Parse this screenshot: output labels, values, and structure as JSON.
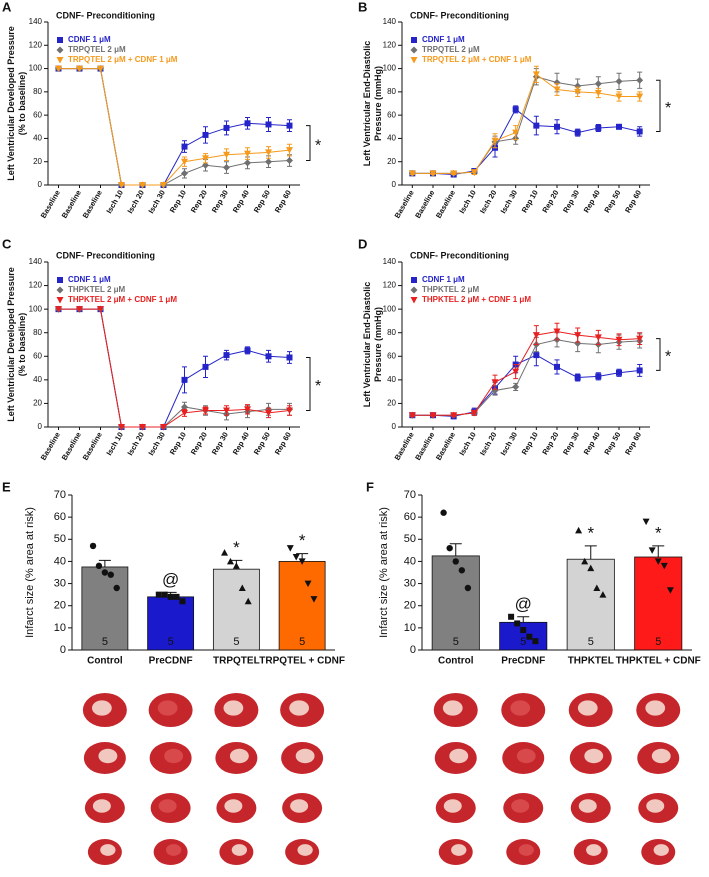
{
  "chart_data": [
    {
      "type": "line",
      "panel": "A",
      "title": "CDNF- Preconditioning",
      "ylabel": [
        "Left Ventricular Developed Pressure",
        "(% to baseline)"
      ],
      "categories": [
        "Baseline",
        "Baseline",
        "Baseline",
        "Isch 10",
        "Isch 20",
        "Isch 30",
        "Rep 10",
        "Rep 20",
        "Rep 30",
        "Rep 40",
        "Rep 50",
        "Rep 60"
      ],
      "ylim": [
        0,
        140
      ],
      "yticks": [
        0,
        20,
        40,
        60,
        80,
        100,
        120,
        140
      ],
      "annotation": "*",
      "series": [
        {
          "name": "CDNF 1 μM",
          "color": "#2424c8",
          "values": [
            100,
            100,
            100,
            0,
            0,
            0,
            33,
            43,
            49,
            53,
            52,
            51
          ],
          "errors": [
            0,
            0,
            0,
            0,
            0,
            0,
            5,
            7,
            6,
            5,
            6,
            5
          ]
        },
        {
          "name": "TRPQTEL 2 μM",
          "color": "#707070",
          "values": [
            100,
            100,
            100,
            0,
            0,
            0,
            10,
            17,
            15,
            19,
            20,
            21
          ],
          "errors": [
            0,
            0,
            0,
            0,
            0,
            0,
            4,
            5,
            5,
            5,
            5,
            5
          ]
        },
        {
          "name": "TRPQTEL 2 μM + CDNF 1 μM",
          "color": "#f59a1c",
          "values": [
            100,
            100,
            100,
            0,
            0,
            0,
            20,
            23,
            26,
            27,
            28,
            30
          ],
          "errors": [
            0,
            0,
            0,
            0,
            0,
            0,
            4,
            4,
            5,
            5,
            5,
            5
          ]
        }
      ]
    },
    {
      "type": "line",
      "panel": "B",
      "title": "CDNF- Preconditioning",
      "ylabel": [
        "Left Ventricular End-Diastolic",
        "Pressure (mmHg)"
      ],
      "categories": [
        "Baseline",
        "Baseline",
        "Baseline",
        "Isch 10",
        "Isch 20",
        "Isch 30",
        "Rep 10",
        "Rep 20",
        "Rep 30",
        "Rep 40",
        "Rep 50",
        "Rep 60"
      ],
      "ylim": [
        0,
        140
      ],
      "yticks": [
        0,
        20,
        40,
        60,
        80,
        100,
        120,
        140
      ],
      "annotation": "*",
      "series": [
        {
          "name": "CDNF 1 μM",
          "color": "#2424c8",
          "values": [
            10,
            10,
            9,
            12,
            32,
            65,
            51,
            50,
            45,
            49,
            50,
            46
          ],
          "errors": [
            0,
            0,
            1,
            2,
            8,
            3,
            8,
            6,
            3,
            3,
            2,
            4
          ]
        },
        {
          "name": "TRPQTEL 2 μM",
          "color": "#707070",
          "values": [
            10,
            10,
            10,
            11,
            37,
            40,
            93,
            88,
            85,
            87,
            89,
            90
          ],
          "errors": [
            1,
            1,
            1,
            2,
            5,
            5,
            7,
            8,
            6,
            6,
            7,
            7
          ]
        },
        {
          "name": "TRPQTEL 2 μM + CDNF 1 μM",
          "color": "#f59a1c",
          "values": [
            10,
            10,
            10,
            11,
            38,
            45,
            95,
            82,
            80,
            79,
            76,
            76
          ],
          "errors": [
            1,
            1,
            1,
            2,
            6,
            6,
            7,
            5,
            4,
            4,
            4,
            4
          ]
        }
      ]
    },
    {
      "type": "line",
      "panel": "C",
      "title": "CDNF- Preconditioning",
      "ylabel": [
        "Left Ventricular Developed Pressure",
        "(% to baseline)"
      ],
      "categories": [
        "Baseline",
        "Baseline",
        "Baseline",
        "Isch 10",
        "Isch 20",
        "Isch 30",
        "Rep 10",
        "Rep 20",
        "Rep 30",
        "Rep 40",
        "Rep 50",
        "Rep 60"
      ],
      "ylim": [
        0,
        140
      ],
      "yticks": [
        0,
        20,
        40,
        60,
        80,
        100,
        120,
        140
      ],
      "annotation": "*",
      "series": [
        {
          "name": "CDNF 1 μM",
          "color": "#2424c8",
          "values": [
            100,
            100,
            100,
            0,
            0,
            0,
            40,
            51,
            61,
            65,
            60,
            59
          ],
          "errors": [
            0,
            0,
            0,
            0,
            0,
            0,
            11,
            9,
            4,
            3,
            5,
            5
          ]
        },
        {
          "name": "THPKTEL 2 μM",
          "color": "#707070",
          "values": [
            100,
            100,
            100,
            0,
            0,
            0,
            17,
            14,
            11,
            13,
            15,
            15
          ],
          "errors": [
            0,
            0,
            0,
            0,
            0,
            0,
            4,
            4,
            5,
            5,
            5,
            5
          ]
        },
        {
          "name": "THPKTEL 2 μM + CDNF 1 μM",
          "color": "#e82020",
          "values": [
            100,
            100,
            100,
            0,
            0,
            0,
            12,
            14,
            14,
            15,
            12,
            14
          ],
          "errors": [
            0,
            0,
            0,
            0,
            0,
            0,
            3,
            3,
            4,
            4,
            4,
            4
          ]
        }
      ]
    },
    {
      "type": "line",
      "panel": "D",
      "title": "CDNF- Preconditioning",
      "ylabel": [
        "Left Ventricular End-Diastolic",
        "Pressure (mmHg)"
      ],
      "categories": [
        "Baseline",
        "Baseline",
        "Baseline",
        "Isch 10",
        "Isch 20",
        "Isch 30",
        "Rep 10",
        "Rep 20",
        "Rep 30",
        "Rep 40",
        "Rep 50",
        "Rep 60"
      ],
      "ylim": [
        0,
        140
      ],
      "yticks": [
        0,
        20,
        40,
        60,
        80,
        100,
        120,
        140
      ],
      "annotation": "*",
      "series": [
        {
          "name": "CDNF 1 μM",
          "color": "#2424c8",
          "values": [
            10,
            10,
            9,
            13,
            33,
            53,
            61,
            51,
            42,
            43,
            46,
            48
          ],
          "errors": [
            1,
            1,
            1,
            3,
            5,
            7,
            9,
            6,
            3,
            3,
            3,
            5
          ]
        },
        {
          "name": "THPKTEL 2 μM",
          "color": "#707070",
          "values": [
            10,
            10,
            10,
            12,
            31,
            34,
            70,
            74,
            71,
            70,
            72,
            73
          ],
          "errors": [
            1,
            1,
            1,
            2,
            4,
            3,
            6,
            6,
            7,
            7,
            6,
            6
          ]
        },
        {
          "name": "THPKTEL 2 μM + CDNF 1 μM",
          "color": "#e82020",
          "values": [
            10,
            10,
            10,
            12,
            38,
            47,
            78,
            81,
            78,
            76,
            74,
            75
          ],
          "errors": [
            1,
            1,
            1,
            2,
            6,
            6,
            8,
            7,
            6,
            6,
            5,
            5
          ]
        }
      ]
    },
    {
      "type": "bar",
      "panel": "E",
      "ylabel": "Infarct size (% area at risk)",
      "categories": [
        "Control",
        "PreCDNF",
        "TRPQTEL",
        "TRPQTEL + CDNF"
      ],
      "values": [
        37.5,
        24,
        36.5,
        40
      ],
      "errors": [
        3,
        2,
        4,
        3.5
      ],
      "colors": [
        "#808080",
        "#1a1acc",
        "#d3d3d3",
        "#ff6a00"
      ],
      "n": [
        5,
        5,
        5,
        5
      ],
      "annotations": [
        null,
        "@",
        "*",
        "*"
      ],
      "points": [
        [
          47,
          38,
          35,
          34,
          28
        ],
        [
          25,
          25,
          24,
          24,
          22
        ],
        [
          44,
          40,
          38,
          28,
          22
        ],
        [
          46,
          42,
          40,
          30,
          23
        ]
      ],
      "ylim": [
        0,
        70
      ],
      "yticks": [
        0,
        10,
        20,
        30,
        40,
        50,
        60,
        70
      ]
    },
    {
      "type": "bar",
      "panel": "F",
      "ylabel": "Infarct size (% area at risk)",
      "categories": [
        "Control",
        "PreCDNF",
        "THPKTEL",
        "THPKTEL + CDNF"
      ],
      "values": [
        42.5,
        12.5,
        41,
        42
      ],
      "errors": [
        5.5,
        2.5,
        6,
        5
      ],
      "colors": [
        "#808080",
        "#1a1acc",
        "#d3d3d3",
        "#ff1a1a"
      ],
      "n": [
        5,
        5,
        5,
        5
      ],
      "annotations": [
        null,
        "@",
        "*",
        "*"
      ],
      "points": [
        [
          62,
          46,
          40,
          36,
          28
        ],
        [
          15,
          12,
          9,
          6,
          4
        ],
        [
          54,
          40,
          37,
          28,
          25
        ],
        [
          58,
          45,
          40,
          38,
          27
        ]
      ],
      "ylim": [
        0,
        70
      ],
      "yticks": [
        0,
        10,
        20,
        30,
        40,
        50,
        60,
        70
      ]
    }
  ]
}
